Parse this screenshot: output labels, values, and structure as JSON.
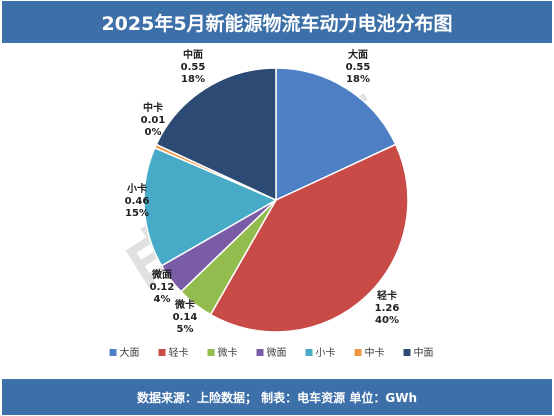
{
  "title": "2025年5月新能源物流车动力电池分布图",
  "footer": "数据来源：上险数据； 制表：电车资源 单位：GWh",
  "watermark": "电车资源",
  "chart_data": {
    "type": "pie",
    "unit": "GWh",
    "start_angle_deg": 0,
    "direction": "clockwise",
    "legend_position": "bottom",
    "slices": [
      {
        "name": "大面",
        "value": "0.55",
        "percent": "18%",
        "pct": 18,
        "color": "#4e7fc4"
      },
      {
        "name": "轻卡",
        "value": "1.26",
        "percent": "40%",
        "pct": 40,
        "color": "#c84b47"
      },
      {
        "name": "微卡",
        "value": "0.14",
        "percent": "5%",
        "pct": 4.5,
        "color": "#93bc4e"
      },
      {
        "name": "微面",
        "value": "0.12",
        "percent": "4%",
        "pct": 3.9,
        "color": "#7a5ba6"
      },
      {
        "name": "小卡",
        "value": "0.46",
        "percent": "15%",
        "pct": 14.7,
        "color": "#47abc7"
      },
      {
        "name": "中卡",
        "value": "0.01",
        "percent": "0%",
        "pct": 0.45,
        "color": "#ef9645"
      },
      {
        "name": "中面",
        "value": "0.55",
        "percent": "18%",
        "pct": 18,
        "color": "#2c4a74"
      }
    ]
  }
}
